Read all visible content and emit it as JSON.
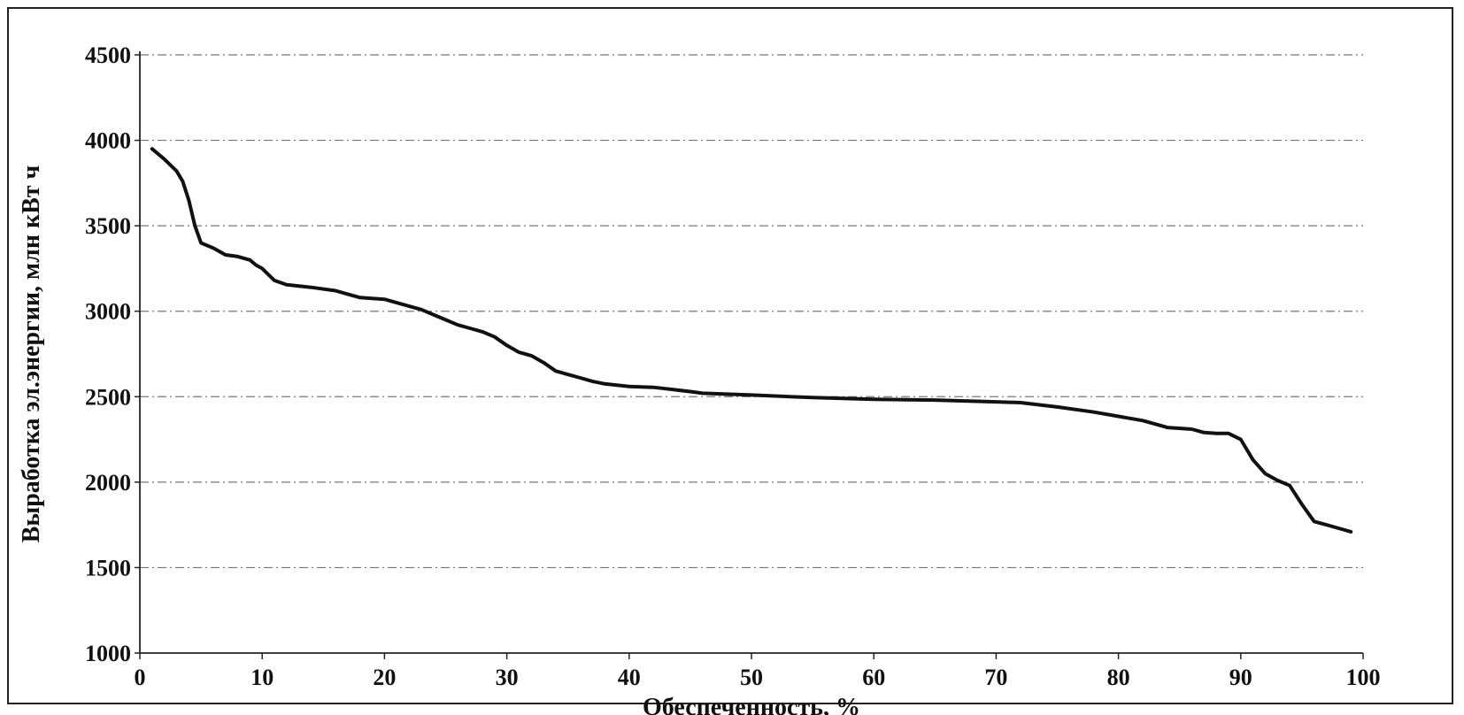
{
  "chart_data": {
    "type": "line",
    "title": "",
    "xlabel": "Обеспеченность, %",
    "ylabel": "Выработка эл.энергии, млн кВт ч",
    "xlim": [
      0,
      100
    ],
    "ylim": [
      1000,
      4500
    ],
    "xticks": [
      0,
      10,
      20,
      30,
      40,
      50,
      60,
      70,
      80,
      90,
      100
    ],
    "yticks": [
      1000,
      1500,
      2000,
      2500,
      3000,
      3500,
      4000,
      4500
    ],
    "grid": true,
    "legend": "none",
    "line_color": "#111111",
    "series": [
      {
        "x": [
          1,
          2,
          3,
          3.5,
          4,
          4.5,
          5,
          6,
          7,
          8,
          9,
          9.5,
          10,
          11,
          12,
          14,
          16,
          17,
          18,
          20,
          21,
          22,
          23,
          24,
          25,
          26,
          27,
          28,
          29,
          30,
          31,
          32,
          33,
          34,
          35,
          36,
          37,
          38,
          40,
          42,
          45,
          46,
          50,
          55,
          60,
          65,
          70,
          72,
          75,
          78,
          80,
          82,
          83,
          84,
          86,
          87,
          88,
          89,
          90,
          91,
          92,
          93,
          94,
          95,
          96,
          97,
          98,
          99
        ],
        "y": [
          3950,
          3890,
          3820,
          3760,
          3650,
          3500,
          3400,
          3370,
          3330,
          3320,
          3300,
          3270,
          3250,
          3180,
          3155,
          3140,
          3120,
          3100,
          3080,
          3070,
          3050,
          3030,
          3010,
          2980,
          2950,
          2920,
          2900,
          2880,
          2850,
          2800,
          2760,
          2740,
          2700,
          2650,
          2630,
          2610,
          2590,
          2575,
          2560,
          2555,
          2530,
          2520,
          2510,
          2495,
          2485,
          2480,
          2470,
          2465,
          2440,
          2410,
          2385,
          2360,
          2340,
          2320,
          2310,
          2290,
          2285,
          2285,
          2250,
          2130,
          2050,
          2010,
          1980,
          1870,
          1770,
          1750,
          1730,
          1710
        ]
      }
    ]
  }
}
